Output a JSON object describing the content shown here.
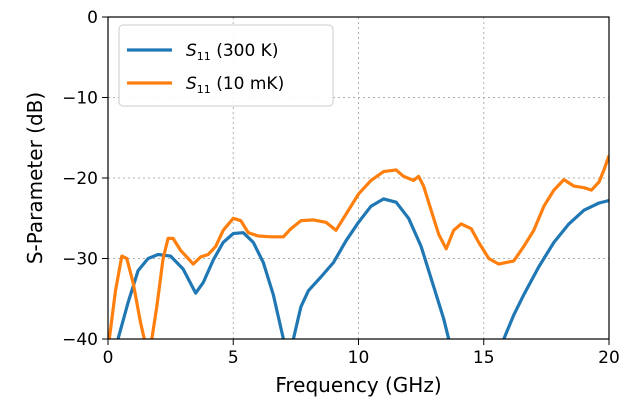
{
  "chart_data": {
    "type": "line",
    "xlabel": "Frequency (GHz)",
    "ylabel": "S-Parameter (dB)",
    "xlim": [
      0,
      20
    ],
    "ylim": [
      -40,
      0
    ],
    "xticks": [
      0,
      5,
      10,
      15,
      20
    ],
    "yticks": [
      0,
      -10,
      -20,
      -30,
      -40
    ],
    "xtick_labels": [
      "0",
      "5",
      "10",
      "15",
      "20"
    ],
    "ytick_labels": [
      "0",
      "−10",
      "−20",
      "−30",
      "−40"
    ],
    "grid": true,
    "legend_position": "top-left",
    "series": [
      {
        "name": "S11 (300 K)",
        "name_main": "S",
        "name_sub": "11",
        "name_rest": " (300 K)",
        "color": "#1f77b4",
        "segments": [
          [
            [
              0.4,
              -40
            ],
            [
              0.8,
              -35.5
            ],
            [
              1.2,
              -31.5
            ],
            [
              1.6,
              -30.0
            ],
            [
              2.0,
              -29.5
            ],
            [
              2.5,
              -29.7
            ],
            [
              3.0,
              -31.3
            ],
            [
              3.5,
              -34.3
            ],
            [
              3.8,
              -33.0
            ],
            [
              4.2,
              -30.2
            ],
            [
              4.6,
              -28.0
            ],
            [
              5.0,
              -26.9
            ],
            [
              5.4,
              -26.8
            ],
            [
              5.8,
              -28.0
            ],
            [
              6.2,
              -30.5
            ],
            [
              6.6,
              -34.5
            ],
            [
              7.0,
              -40
            ]
          ],
          [
            [
              7.4,
              -40
            ],
            [
              7.7,
              -36.0
            ],
            [
              8.0,
              -34.0
            ],
            [
              8.5,
              -32.3
            ],
            [
              9.0,
              -30.5
            ],
            [
              9.5,
              -27.8
            ],
            [
              10.0,
              -25.5
            ],
            [
              10.5,
              -23.5
            ],
            [
              11.0,
              -22.6
            ],
            [
              11.5,
              -23.0
            ],
            [
              12.0,
              -25.0
            ],
            [
              12.5,
              -28.5
            ],
            [
              13.0,
              -33.5
            ],
            [
              13.4,
              -37.5
            ],
            [
              13.6,
              -40
            ]
          ],
          [
            [
              15.8,
              -40
            ],
            [
              16.2,
              -37.0
            ],
            [
              16.6,
              -34.5
            ],
            [
              17.2,
              -31.0
            ],
            [
              17.8,
              -28.0
            ],
            [
              18.4,
              -25.7
            ],
            [
              19.0,
              -24.0
            ],
            [
              19.6,
              -23.1
            ],
            [
              20.0,
              -22.8
            ]
          ]
        ]
      },
      {
        "name": "S11 (10 mK)",
        "name_main": "S",
        "name_sub": "11",
        "name_rest": " (10 mK)",
        "color": "#ff7f0e",
        "segments": [
          [
            [
              0.05,
              -40
            ],
            [
              0.3,
              -34.0
            ],
            [
              0.55,
              -29.7
            ],
            [
              0.75,
              -30.0
            ],
            [
              1.0,
              -33.0
            ],
            [
              1.3,
              -38.0
            ],
            [
              1.45,
              -40
            ]
          ],
          [
            [
              1.75,
              -40
            ],
            [
              1.95,
              -36.0
            ],
            [
              2.2,
              -30.0
            ],
            [
              2.4,
              -27.5
            ],
            [
              2.6,
              -27.5
            ],
            [
              2.9,
              -29.0
            ],
            [
              3.2,
              -30.0
            ],
            [
              3.4,
              -30.7
            ],
            [
              3.7,
              -29.8
            ],
            [
              4.0,
              -29.5
            ],
            [
              4.3,
              -28.5
            ],
            [
              4.6,
              -26.5
            ],
            [
              5.0,
              -25.0
            ],
            [
              5.3,
              -25.3
            ],
            [
              5.6,
              -26.8
            ],
            [
              6.0,
              -27.2
            ],
            [
              6.5,
              -27.3
            ],
            [
              7.0,
              -27.3
            ],
            [
              7.3,
              -26.3
            ],
            [
              7.7,
              -25.3
            ],
            [
              8.2,
              -25.2
            ],
            [
              8.7,
              -25.5
            ],
            [
              9.1,
              -26.5
            ],
            [
              9.5,
              -24.5
            ],
            [
              10.0,
              -22.0
            ],
            [
              10.5,
              -20.3
            ],
            [
              11.0,
              -19.2
            ],
            [
              11.5,
              -19.0
            ],
            [
              11.8,
              -19.8
            ],
            [
              12.2,
              -20.3
            ],
            [
              12.4,
              -19.8
            ],
            [
              12.6,
              -21.0
            ],
            [
              12.9,
              -24.0
            ],
            [
              13.2,
              -27.0
            ],
            [
              13.5,
              -28.8
            ],
            [
              13.8,
              -26.5
            ],
            [
              14.1,
              -25.7
            ],
            [
              14.5,
              -26.3
            ],
            [
              14.8,
              -28.0
            ],
            [
              15.2,
              -30.0
            ],
            [
              15.6,
              -30.7
            ],
            [
              16.2,
              -30.3
            ],
            [
              16.6,
              -28.5
            ],
            [
              17.0,
              -26.5
            ],
            [
              17.4,
              -23.5
            ],
            [
              17.8,
              -21.5
            ],
            [
              18.2,
              -20.2
            ],
            [
              18.6,
              -21.0
            ],
            [
              19.0,
              -21.2
            ],
            [
              19.3,
              -21.5
            ],
            [
              19.6,
              -20.5
            ],
            [
              19.8,
              -19.0
            ],
            [
              20.0,
              -17.2
            ]
          ]
        ]
      }
    ]
  }
}
